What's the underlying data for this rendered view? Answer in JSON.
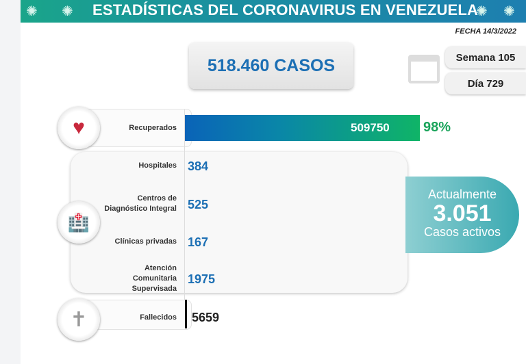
{
  "header": {
    "title": "ESTADÍSTICAS DEL CORONAVIRUS EN VENEZUELA",
    "date": "FECHA 14/3/2022"
  },
  "total_cases": "518.460 CASOS",
  "week": "Semana 105",
  "day": "Día 729",
  "recovered": {
    "label": "Recuperados",
    "value": "509750",
    "percent": "98%"
  },
  "locations": [
    {
      "label": "Hospitales",
      "value": "384"
    },
    {
      "label": "Centros de Diagnóstico Integral",
      "value": "525"
    },
    {
      "label": "Clínicas privadas",
      "value": "167"
    },
    {
      "label": "Atención Comunitaria Supervisada",
      "value": "1975"
    }
  ],
  "active": {
    "prefix": "Actualmente",
    "value": "3.051",
    "suffix": "Casos activos"
  },
  "deaths": {
    "label": "Fallecidos",
    "value": "5659"
  },
  "colors": {
    "header": "#1b8fa0",
    "blue": "#1c6fb4",
    "green": "#19a35a",
    "active": "#3aa9b1"
  },
  "chart_data": {
    "type": "bar",
    "categories": [
      "Recuperados",
      "Hospitales",
      "Centros de Diagnóstico Integral",
      "Clínicas privadas",
      "Atención Comunitaria Supervisada",
      "Fallecidos"
    ],
    "values": [
      509750,
      384,
      525,
      167,
      1975,
      5659
    ],
    "total": 518460
  }
}
